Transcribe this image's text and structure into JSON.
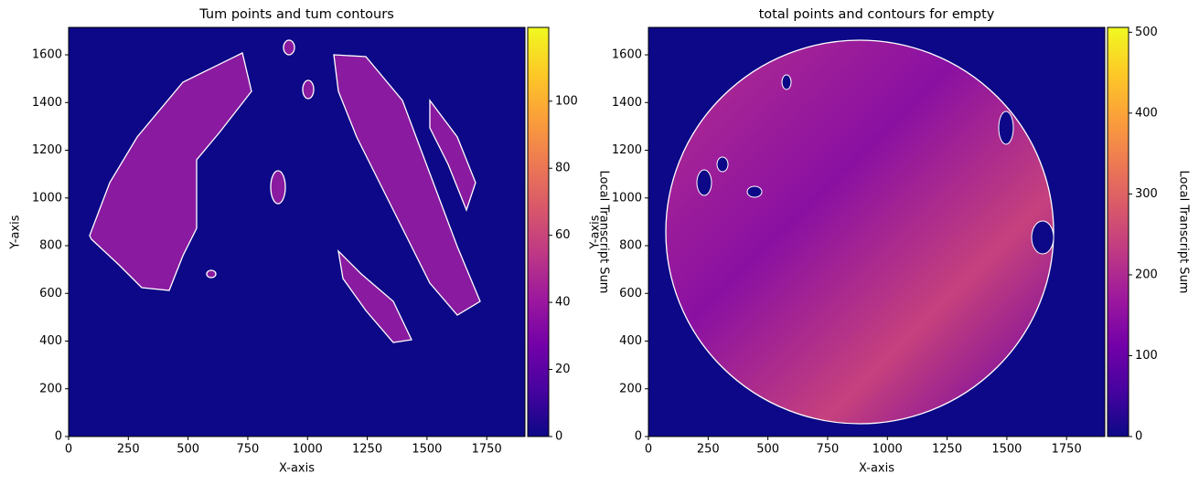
{
  "chart_data": [
    {
      "type": "heatmap",
      "title": "Tum points and tum contours",
      "xlabel": "X-axis",
      "ylabel": "Y-axis",
      "xlim": [
        0,
        1910
      ],
      "ylim": [
        0,
        1715
      ],
      "xticks": [
        0,
        250,
        500,
        750,
        1000,
        1250,
        1500,
        1750
      ],
      "yticks": [
        0,
        200,
        400,
        600,
        800,
        1000,
        1200,
        1400,
        1600
      ],
      "colormap": "plasma",
      "colorbar_label": "Local Transcript Sum",
      "clim": [
        0,
        122
      ],
      "cticks": [
        0,
        20,
        40,
        60,
        80,
        100
      ]
    },
    {
      "type": "heatmap",
      "title": "total points and contours for empty",
      "xlabel": "X-axis",
      "ylabel": "Y-axis",
      "xlim": [
        0,
        1910
      ],
      "ylim": [
        0,
        1715
      ],
      "xticks": [
        0,
        250,
        500,
        750,
        1000,
        1250,
        1500,
        1750
      ],
      "yticks": [
        0,
        200,
        400,
        600,
        800,
        1000,
        1200,
        1400,
        1600
      ],
      "colormap": "plasma",
      "colorbar_label": "Local Transcript Sum",
      "clim": [
        0,
        506
      ],
      "cticks": [
        0,
        100,
        200,
        300,
        400,
        500
      ]
    }
  ]
}
